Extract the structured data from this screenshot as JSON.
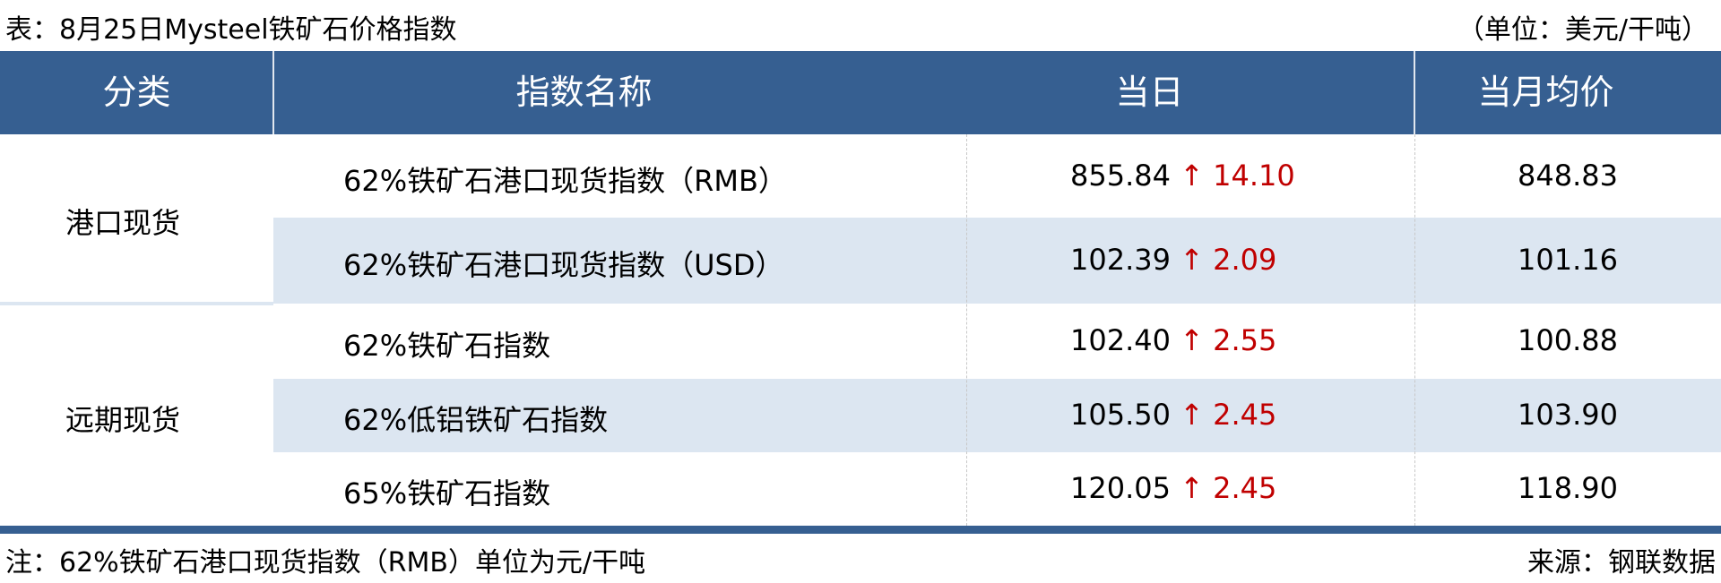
{
  "title": "表：8月25日Mysteel铁矿石价格指数",
  "unit": "（单位：美元/干吨）",
  "colors": {
    "header_bg": "#365f91",
    "shade_bg": "#dce6f1",
    "up": "#c00000"
  },
  "table": {
    "headers": [
      "分类",
      "指数名称",
      "当日",
      "当月均价"
    ],
    "groups": [
      {
        "category": "港口现货",
        "rows": [
          {
            "name": "62%铁矿石港口现货指数（RMB）",
            "today": "855.84",
            "arrow": "↑",
            "change": "14.10",
            "avg": "848.83"
          },
          {
            "name": "62%铁矿石港口现货指数（USD）",
            "today": "102.39",
            "arrow": "↑",
            "change": "2.09",
            "avg": "101.16"
          }
        ]
      },
      {
        "category": "远期现货",
        "rows": [
          {
            "name": "62%铁矿石指数",
            "today": "102.40",
            "arrow": "↑",
            "change": "2.55",
            "avg": "100.88"
          },
          {
            "name": "62%低铝铁矿石指数",
            "today": "105.50",
            "arrow": "↑",
            "change": "2.45",
            "avg": "103.90"
          },
          {
            "name": "65%铁矿石指数",
            "today": "120.05",
            "arrow": "↑",
            "change": "2.45",
            "avg": "118.90"
          }
        ]
      }
    ]
  },
  "footer": {
    "note": "注：62%铁矿石港口现货指数（RMB）单位为元/干吨",
    "source": "来源：钢联数据"
  }
}
